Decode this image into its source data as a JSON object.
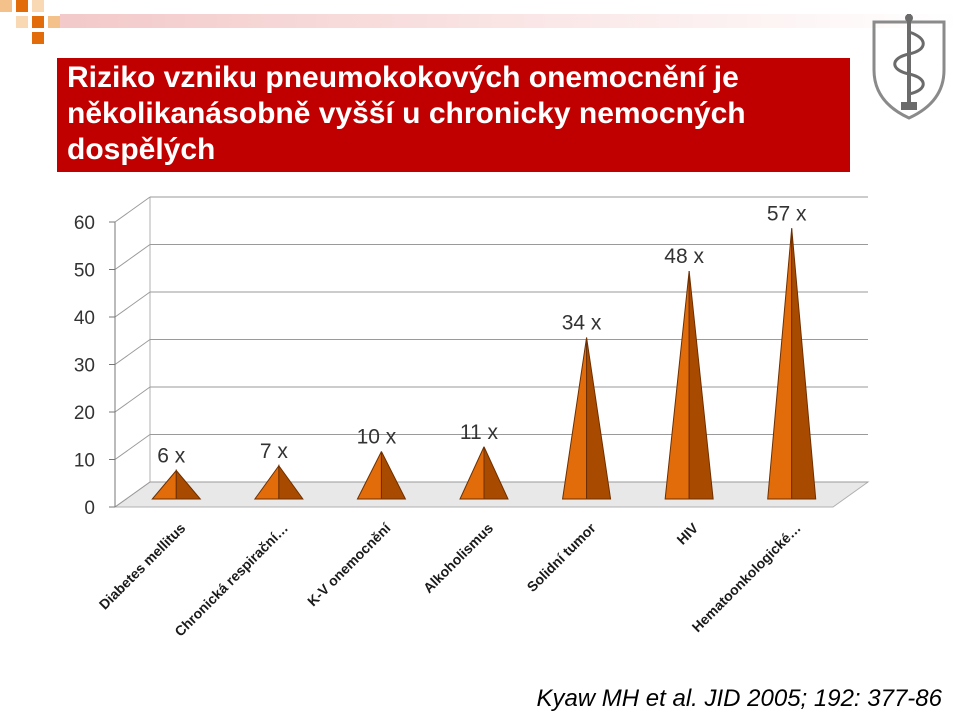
{
  "slide": {
    "title": "Riziko vzniku pneumokokových onemocnění je několikanásobně vyšší u chronicky nemocných dospělých",
    "citation": "Kyaw MH et al. JID 2005; 192: 377-86",
    "accent_color": "#c00000",
    "bar_color": "#e36c0a",
    "emblem_icon": "caduceus-shield-icon"
  },
  "chart_data": {
    "type": "bar",
    "categories": [
      "Diabetes mellitus",
      "Chronická respirační…",
      "K-V onemocnění",
      "Alkoholismus",
      "Solidní tumor",
      "HIV",
      "Hematoonkologické…"
    ],
    "values": [
      6,
      7,
      10,
      11,
      34,
      48,
      57
    ],
    "data_labels": [
      "6 x",
      "7 x",
      "10 x",
      "11 x",
      "34 x",
      "48 x",
      "57 x"
    ],
    "ylim": [
      0,
      60
    ],
    "yticks": [
      "0",
      "10",
      "20",
      "30",
      "40",
      "50",
      "60"
    ],
    "grid": true,
    "style": "3d-pyramid",
    "legend": "none"
  }
}
